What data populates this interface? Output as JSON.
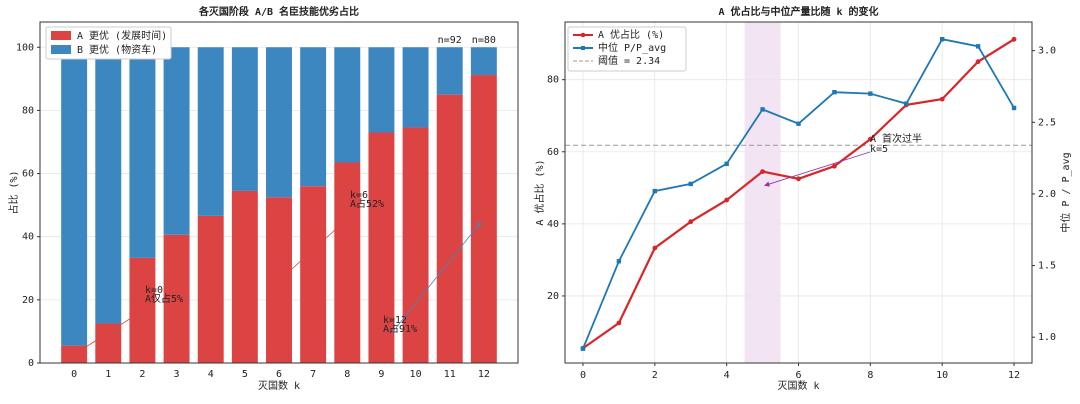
{
  "chart_data": [
    {
      "type": "stacked_bar",
      "title": "各灭国阶段 A/B 名臣技能优劣占比",
      "xlabel": "灭国数 k",
      "ylabel": "占比 (%)",
      "categories": [
        "0",
        "1",
        "2",
        "3",
        "4",
        "5",
        "6",
        "7",
        "8",
        "9",
        "10",
        "11",
        "12"
      ],
      "series": [
        {
          "name": "A 更优 (发展时间)",
          "color": "#dc4444",
          "values": [
            5.5,
            12.5,
            33.3,
            40.6,
            46.6,
            54.5,
            52.5,
            56,
            63.5,
            73,
            74.6,
            85,
            91.2
          ]
        },
        {
          "name": "B 更优 (物资车)",
          "color": "#3d87c0",
          "values": [
            94.5,
            87.5,
            66.7,
            59.4,
            53.4,
            45.5,
            47.5,
            44,
            36.5,
            27,
            25.4,
            15,
            8.8
          ]
        }
      ],
      "ylim": [
        0,
        108
      ],
      "yticks": [
        0,
        20,
        40,
        60,
        80,
        100
      ],
      "grid": true,
      "legend": "upper left",
      "top_labels": [
        {
          "index": 11,
          "text": "n=92"
        },
        {
          "index": 12,
          "text": "n=80"
        }
      ],
      "annotations": [
        {
          "lines": [
            "k=0",
            "A仅占5%"
          ],
          "color": "#dc4444",
          "index": 0
        },
        {
          "lines": [
            "k=6",
            "A占52%"
          ],
          "color": "#dc4444",
          "index": 6
        },
        {
          "lines": [
            "k=12",
            "A占91%"
          ],
          "color": "#3d87c0",
          "index": 12
        }
      ]
    },
    {
      "type": "line",
      "title": "A 优占比与中位产量比随 k 的变化",
      "xlabel": "灭国数 k",
      "ylabel": "A 优占比 (%)",
      "y2label": "中位 P / P_avg",
      "x": [
        0,
        1,
        2,
        3,
        4,
        5,
        6,
        7,
        8,
        9,
        10,
        11,
        12
      ],
      "series": [
        {
          "name": "A 优占比 (%)",
          "color": "#d62728",
          "marker": "circle",
          "values": [
            5.5,
            12.5,
            33.3,
            40.6,
            46.6,
            54.5,
            52.5,
            56,
            63.5,
            73,
            74.6,
            85,
            91.2
          ]
        },
        {
          "name": "中位 P/P_avg",
          "color": "#1f77b4",
          "marker": "square",
          "axis": "y2",
          "values": [
            0.92,
            1.53,
            2.02,
            2.07,
            2.21,
            2.59,
            2.49,
            2.71,
            2.7,
            2.63,
            3.08,
            3.03,
            2.6
          ]
        }
      ],
      "threshold": {
        "value": 2.34,
        "label": "阈值 = 2.34",
        "color": "#999999"
      },
      "span": [
        4.5,
        5.5
      ],
      "annotation": {
        "lines": [
          "A 首次过半",
          "k=5"
        ],
        "x": 5,
        "color": "#9b30a0"
      },
      "xlim": [
        -0.5,
        12.5
      ],
      "xticks": [
        0,
        2,
        4,
        6,
        8,
        10,
        12
      ],
      "ylim": [
        1.4,
        96
      ],
      "yticks": [
        20,
        40,
        60,
        80
      ],
      "y2lim": [
        0.82,
        3.2
      ],
      "y2ticks": [
        {
          "value": 1,
          "label": "1.0"
        },
        1.5,
        {
          "value": 2,
          "label": "2.0"
        },
        2.5,
        {
          "value": 3,
          "label": "3.0"
        }
      ],
      "grid": true,
      "legend": "upper left"
    }
  ]
}
